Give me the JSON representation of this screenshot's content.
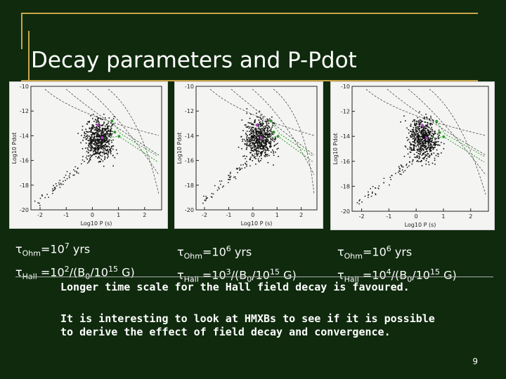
{
  "slide": {
    "title": "Decay parameters and P-Pdot",
    "page_number": "9",
    "accent_color": "#c9a64a",
    "background_color": "#0f2a0d"
  },
  "panels": [
    {
      "name": "panel-1",
      "y_axis_label": "Log10 Pdot",
      "x_axis_label": "Log10 P (s)",
      "y_ticks": [
        "-10",
        "-12",
        "-14",
        "-16",
        "-18",
        "-20"
      ],
      "x_ticks": [
        "-2",
        "-1",
        "0",
        "1",
        "2"
      ],
      "caption": {
        "ohm_symbol": "τ",
        "ohm_sub": "Ohm",
        "ohm_eq": "=10",
        "ohm_exp": "7",
        "ohm_unit": " yrs",
        "hall_symbol": "τ",
        "hall_sub": "Hall",
        "hall_eq": " =10",
        "hall_exp": "2",
        "hall_tail1": "/(B",
        "hall_b_sub": "0",
        "hall_tail2": "/10",
        "hall_exp2": "15",
        "hall_tail3": " G)"
      }
    },
    {
      "name": "panel-2",
      "y_axis_label": "Log10 Pdot",
      "x_axis_label": "Log10 P (s)",
      "y_ticks": [
        "-10",
        "-12",
        "-14",
        "-16",
        "-18",
        "-20"
      ],
      "x_ticks": [
        "-2",
        "-1",
        "0",
        "1",
        "2"
      ],
      "caption": {
        "ohm_symbol": "τ",
        "ohm_sub": "Ohm",
        "ohm_eq": "=10",
        "ohm_exp": "6",
        "ohm_unit": " yrs",
        "hall_symbol": "τ",
        "hall_sub": "Hall",
        "hall_eq": " =10",
        "hall_exp": "3",
        "hall_tail1": "/(B",
        "hall_b_sub": "0",
        "hall_tail2": "/10",
        "hall_exp2": "15",
        "hall_tail3": " G)"
      }
    },
    {
      "name": "panel-3",
      "y_axis_label": "Log10 Pdot",
      "x_axis_label": "Log10 P (s)",
      "y_ticks": [
        "-10",
        "-12",
        "-14",
        "-16",
        "-18",
        "-20"
      ],
      "x_ticks": [
        "-2",
        "-1",
        "0",
        "1",
        "2"
      ],
      "caption": {
        "ohm_symbol": "τ",
        "ohm_sub": "Ohm",
        "ohm_eq": "=10",
        "ohm_exp": "6",
        "ohm_unit": " yrs",
        "hall_symbol": "τ",
        "hall_sub": "Hall",
        "hall_eq": " =10",
        "hall_exp": "4",
        "hall_tail1": "/(B",
        "hall_b_sub": "0",
        "hall_tail2": "/10",
        "hall_exp2": "15",
        "hall_tail3": " G)"
      }
    }
  ],
  "notes": {
    "line1": "Longer time scale for the Hall field decay is favoured.",
    "line2": "It is interesting to look at HMXBs to see if it is possible",
    "line3": "to derive the effect of field decay and convergence."
  }
}
